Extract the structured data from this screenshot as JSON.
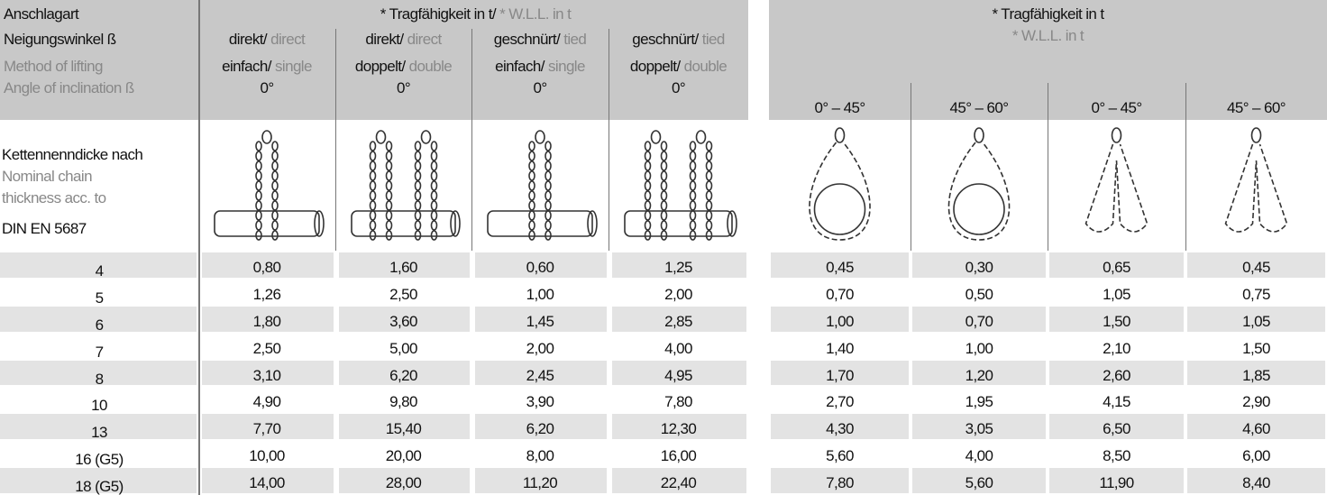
{
  "left": {
    "corner": [
      "Anschlagart",
      "Neigungswinkel ß",
      "Method of lifting",
      "Angle of inclination ß"
    ],
    "title_de": "* Tragfähigkeit in t/",
    "title_en": "* W.L.L. in t",
    "columns": [
      {
        "mode_de": "direkt/",
        "mode_en": "direct",
        "count_de": "einfach/",
        "count_en": "single",
        "angle": "0°"
      },
      {
        "mode_de": "direkt/",
        "mode_en": "direct",
        "count_de": "doppelt/",
        "count_en": "double",
        "angle": "0°"
      },
      {
        "mode_de": "geschnürt/",
        "mode_en": "tied",
        "count_de": "einfach/",
        "count_en": "single",
        "angle": "0°"
      },
      {
        "mode_de": "geschnürt/",
        "mode_en": "tied",
        "count_de": "doppelt/",
        "count_en": "double",
        "angle": "0°"
      }
    ],
    "row_label": [
      "Kettennenndicke nach",
      "Nominal chain",
      "thickness acc. to",
      "DIN EN 5687"
    ]
  },
  "right": {
    "title_de": "* Tragfähigkeit in t",
    "title_en": "* W.L.L. in t",
    "angles": [
      "0° – 45°",
      "45° – 60°",
      "0° – 45°",
      "45° – 60°"
    ]
  },
  "rows": [
    {
      "size": "4",
      "left": [
        "0,80",
        "1,60",
        "0,60",
        "1,25"
      ],
      "right": [
        "0,45",
        "0,30",
        "0,65",
        "0,45"
      ]
    },
    {
      "size": "5",
      "left": [
        "1,26",
        "2,50",
        "1,00",
        "2,00"
      ],
      "right": [
        "0,70",
        "0,50",
        "1,05",
        "0,75"
      ]
    },
    {
      "size": "6",
      "left": [
        "1,80",
        "3,60",
        "1,45",
        "2,85"
      ],
      "right": [
        "1,00",
        "0,70",
        "1,50",
        "1,05"
      ]
    },
    {
      "size": "7",
      "left": [
        "2,50",
        "5,00",
        "2,00",
        "4,00"
      ],
      "right": [
        "1,40",
        "1,00",
        "2,10",
        "1,50"
      ]
    },
    {
      "size": "8",
      "left": [
        "3,10",
        "6,20",
        "2,45",
        "4,95"
      ],
      "right": [
        "1,70",
        "1,20",
        "2,60",
        "1,85"
      ]
    },
    {
      "size": "10",
      "left": [
        "4,90",
        "9,80",
        "3,90",
        "7,80"
      ],
      "right": [
        "2,70",
        "1,95",
        "4,15",
        "2,90"
      ]
    },
    {
      "size": "13",
      "left": [
        "7,70",
        "15,40",
        "6,20",
        "12,30"
      ],
      "right": [
        "4,30",
        "3,05",
        "6,50",
        "4,60"
      ]
    },
    {
      "size": "16 (G5)",
      "left": [
        "10,00",
        "20,00",
        "8,00",
        "16,00"
      ],
      "right": [
        "5,60",
        "4,00",
        "8,50",
        "6,00"
      ]
    },
    {
      "size": "18 (G5)",
      "left": [
        "14,00",
        "28,00",
        "11,20",
        "22,40"
      ],
      "right": [
        "7,80",
        "5,60",
        "11,90",
        "8,40"
      ]
    }
  ]
}
